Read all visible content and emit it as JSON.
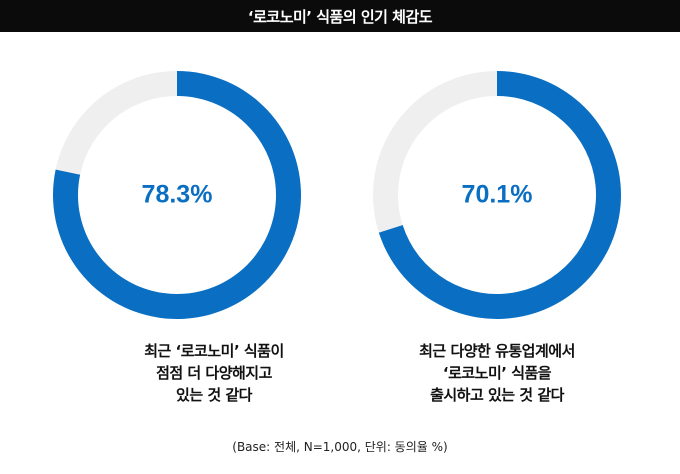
{
  "header": {
    "title": "‘로코노미’ 식품의 인기 체감도"
  },
  "chart_data": [
    {
      "type": "pie",
      "values": [
        78.3,
        21.7
      ],
      "value_label": "78.3%",
      "caption_lines": [
        "최근 ‘로코노미’ 식품이",
        "점점 더 다양해지고",
        "있는 것 같다"
      ]
    },
    {
      "type": "pie",
      "values": [
        70.1,
        29.9
      ],
      "value_label": "70.1%",
      "caption_lines": [
        "최근 다양한 유통업계에서",
        "‘로코노미’ 식품을",
        "출시하고 있는 것 같다"
      ]
    }
  ],
  "colors": {
    "accent": "#0a6fc2",
    "remainder": "#efefef",
    "header_bg": "#0b0b0b"
  },
  "footnote": "(Base: 전체, N=1,000, 단위: 동의율 %)"
}
